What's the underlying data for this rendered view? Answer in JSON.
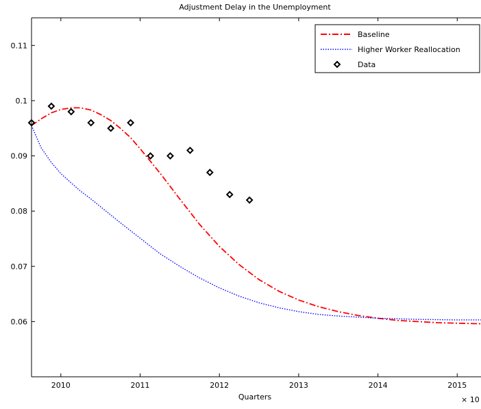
{
  "chart_data": {
    "type": "line",
    "title": "Adjustment Delay in the Unemployment",
    "xlabel": "Quarters",
    "ylabel": "",
    "x_exponent_label": "× 10",
    "xlim": [
      2009.63,
      2015.3
    ],
    "ylim": [
      0.05,
      0.115
    ],
    "x_ticks": [
      2010,
      2011,
      2012,
      2013,
      2014,
      2015
    ],
    "x_tick_labels": [
      "2010",
      "2011",
      "2012",
      "2013",
      "2014",
      "2015"
    ],
    "y_ticks": [
      0.06,
      0.07,
      0.08,
      0.09,
      0.1,
      0.11
    ],
    "y_tick_labels": [
      "0.06",
      "0.07",
      "0.08",
      "0.09",
      "0.1",
      "0.11"
    ],
    "grid": false,
    "legend_position": "top-right",
    "series": [
      {
        "name": "Baseline",
        "style": "dash-dot",
        "color": "#ff0000",
        "x": [
          2009.63,
          2009.75,
          2009.88,
          2010.0,
          2010.13,
          2010.25,
          2010.38,
          2010.5,
          2010.63,
          2010.75,
          2010.88,
          2011.0,
          2011.25,
          2011.5,
          2011.75,
          2012.0,
          2012.25,
          2012.5,
          2012.75,
          2013.0,
          2013.25,
          2013.5,
          2013.75,
          2014.0,
          2014.25,
          2014.5,
          2014.75,
          2015.0,
          2015.3
        ],
        "y": [
          0.0955,
          0.0967,
          0.0978,
          0.0984,
          0.0987,
          0.0987,
          0.0983,
          0.0975,
          0.0964,
          0.095,
          0.0933,
          0.0913,
          0.0869,
          0.0822,
          0.0776,
          0.0736,
          0.0703,
          0.0676,
          0.0655,
          0.0639,
          0.0627,
          0.0618,
          0.0611,
          0.0606,
          0.0602,
          0.06,
          0.0598,
          0.0597,
          0.0596
        ]
      },
      {
        "name": "Higher Worker Reallocation",
        "style": "dotted",
        "color": "#0000ff",
        "x": [
          2009.63,
          2009.75,
          2009.88,
          2010.0,
          2010.13,
          2010.25,
          2010.38,
          2010.5,
          2010.75,
          2011.0,
          2011.25,
          2011.5,
          2011.75,
          2012.0,
          2012.25,
          2012.5,
          2012.75,
          2013.0,
          2013.25,
          2013.5,
          2013.75,
          2014.0,
          2014.5,
          2015.0,
          2015.3
        ],
        "y": [
          0.0955,
          0.0915,
          0.0888,
          0.0868,
          0.0851,
          0.0836,
          0.0822,
          0.0808,
          0.0779,
          0.0751,
          0.0723,
          0.07,
          0.0679,
          0.0661,
          0.0646,
          0.0634,
          0.0625,
          0.0618,
          0.0613,
          0.061,
          0.0608,
          0.0606,
          0.0604,
          0.0603,
          0.0603
        ]
      },
      {
        "name": "Data",
        "style": "markers",
        "marker": "diamond",
        "color": "#000000",
        "x": [
          2009.63,
          2009.88,
          2010.13,
          2010.38,
          2010.63,
          2010.88,
          2011.13,
          2011.38,
          2011.63,
          2011.88,
          2012.13,
          2012.38
        ],
        "y": [
          0.096,
          0.099,
          0.098,
          0.096,
          0.095,
          0.096,
          0.09,
          0.09,
          0.091,
          0.087,
          0.083,
          0.082
        ]
      }
    ]
  }
}
